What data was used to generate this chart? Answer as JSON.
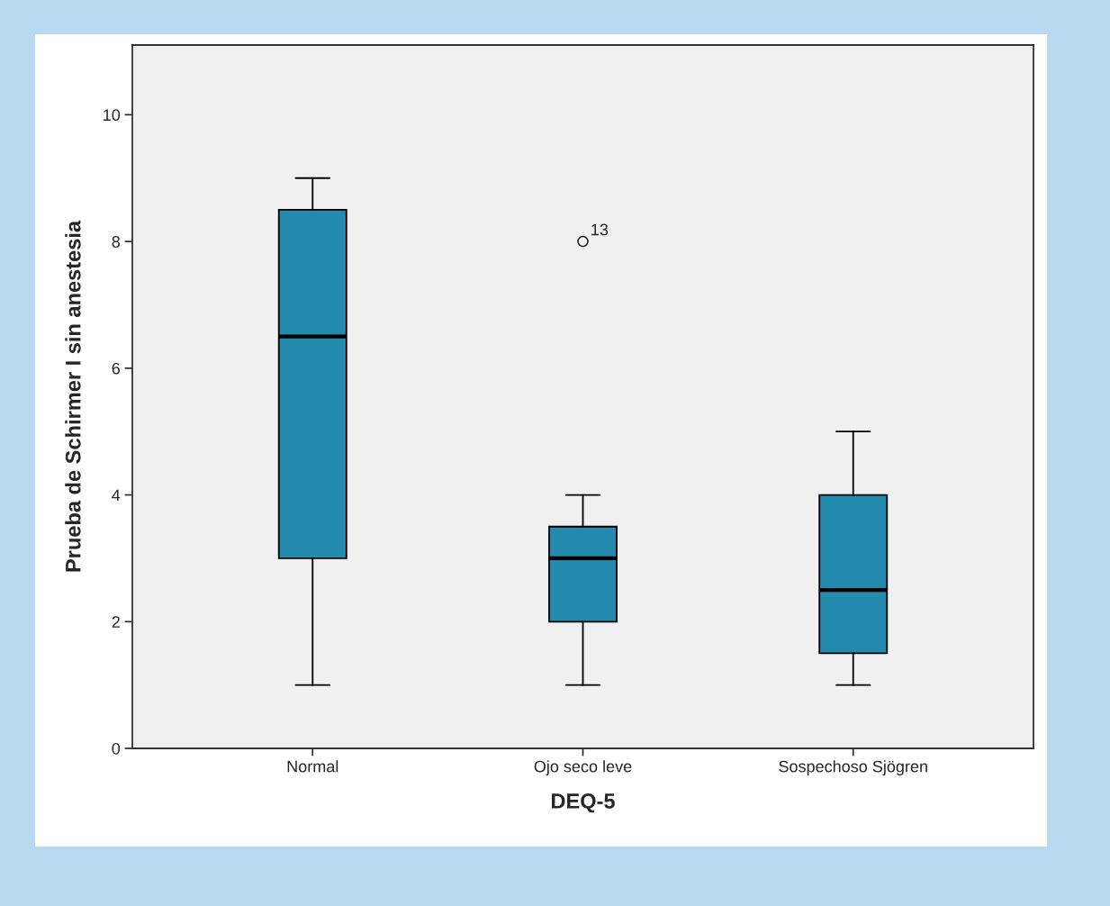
{
  "chart_data": {
    "type": "box",
    "xlabel": "DEQ-5",
    "ylabel": "Prueba de Schirmer I sin anestesia",
    "categories": [
      "Normal",
      "Ojo seco leve",
      "Sospechoso Sjögren"
    ],
    "color": "#248aad",
    "boxes": [
      {
        "low": 1,
        "q1": 3,
        "median": 6.5,
        "q3": 8.5,
        "high": 9
      },
      {
        "low": 1,
        "q1": 2,
        "median": 3,
        "q3": 3.5,
        "high": 4,
        "outliers": [
          8
        ]
      },
      {
        "low": 1,
        "q1": 1.5,
        "median": 2.5,
        "q3": 4,
        "high": 5
      }
    ],
    "annotations": [
      "13"
    ],
    "ylim": [
      0,
      11.1
    ],
    "yticks": [
      0,
      2,
      4,
      6,
      8,
      10
    ],
    "grid": false,
    "legend": false
  }
}
